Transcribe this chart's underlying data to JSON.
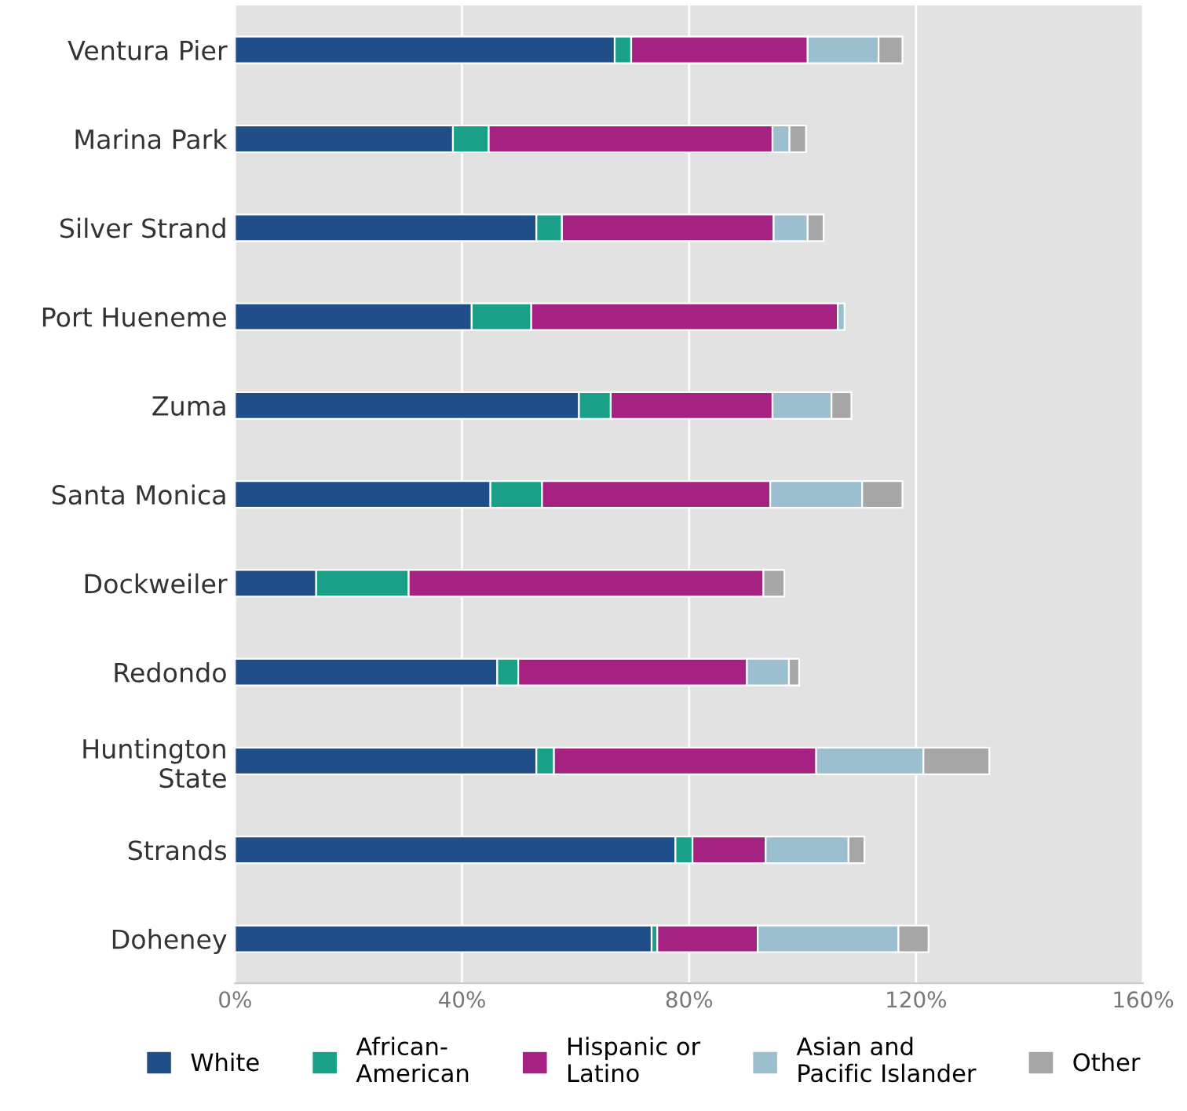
{
  "chart_data": {
    "type": "bar",
    "orientation": "horizontal",
    "stacked": true,
    "categories": [
      "Ventura Pier",
      "Marina Park",
      "Silver Strand",
      "Port Hueneme",
      "Zuma",
      "Santa Monica",
      "Dockweiler",
      "Redondo",
      "Huntington\nState",
      "Strands",
      "Doheney"
    ],
    "series": [
      {
        "name": "White",
        "color": "#1f4e89",
        "values": [
          66.9,
          38.4,
          53.1,
          41.7,
          60.6,
          45,
          14.3,
          46.2,
          53.1,
          77.6,
          73.4
        ]
      },
      {
        "name": "African-\nAmerican",
        "color": "#1aa088",
        "values": [
          2.9,
          6.3,
          4.5,
          10.5,
          5.6,
          9.1,
          16.3,
          3.7,
          3.1,
          3,
          1
        ]
      },
      {
        "name": "Hispanic or\nLatino",
        "color": "#a52182",
        "values": [
          31.1,
          50,
          37.3,
          54,
          28.5,
          40.2,
          62.5,
          40.3,
          46.2,
          12.9,
          17.7
        ]
      },
      {
        "name": "Asian and\nPacific Islander",
        "color": "#9bbfcf",
        "values": [
          12.5,
          3,
          6,
          1.2,
          10.4,
          16.2,
          0,
          7.4,
          18.9,
          14.6,
          24.8
        ]
      },
      {
        "name": "Other",
        "color": "#a6a6a6",
        "values": [
          4.2,
          2.9,
          2.8,
          0,
          3.5,
          7.1,
          3.7,
          1.8,
          11.6,
          2.8,
          5.3
        ]
      }
    ],
    "xlim": [
      0,
      160
    ],
    "xticks": [
      {
        "value": 0,
        "label": "0%"
      },
      {
        "value": 40,
        "label": "40%"
      },
      {
        "value": 80,
        "label": "80%"
      },
      {
        "value": 120,
        "label": "120%"
      },
      {
        "value": 160,
        "label": "160%"
      }
    ],
    "grid": "x",
    "legend": "bottom"
  }
}
